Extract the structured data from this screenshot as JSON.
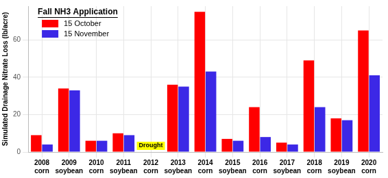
{
  "chart_data": {
    "type": "bar",
    "y_label": "Simulated Drainage Nitrate Loss (lb/acre)",
    "legend_title": "Fall NH3 Application",
    "categories": [
      "2008\ncorn",
      "2009\nsoybean",
      "2010\ncorn",
      "2011\nsoybean",
      "2012\ncorn",
      "2013\nsoybean",
      "2014\ncorn",
      "2015\nsoybean",
      "2016\ncorn",
      "2017\nsoybean",
      "2018\ncorn",
      "2019\nsoybean",
      "2020\ncorn"
    ],
    "series": [
      {
        "name": "15 October",
        "color": "#ff0000",
        "values": [
          9,
          34,
          6,
          10,
          null,
          36,
          75,
          7,
          24,
          5,
          49,
          18,
          65
        ]
      },
      {
        "name": "15 November",
        "color": "#3c28e6",
        "values": [
          4,
          33,
          6,
          9,
          null,
          35,
          43,
          6,
          8,
          4,
          24,
          17,
          41
        ]
      }
    ],
    "ylim": [
      0,
      78
    ],
    "yticks": [
      0,
      20,
      40,
      60
    ],
    "grid": true,
    "legend": "upper left",
    "annotations": [
      {
        "text": "Drought",
        "category": "2012\ncorn"
      }
    ]
  }
}
